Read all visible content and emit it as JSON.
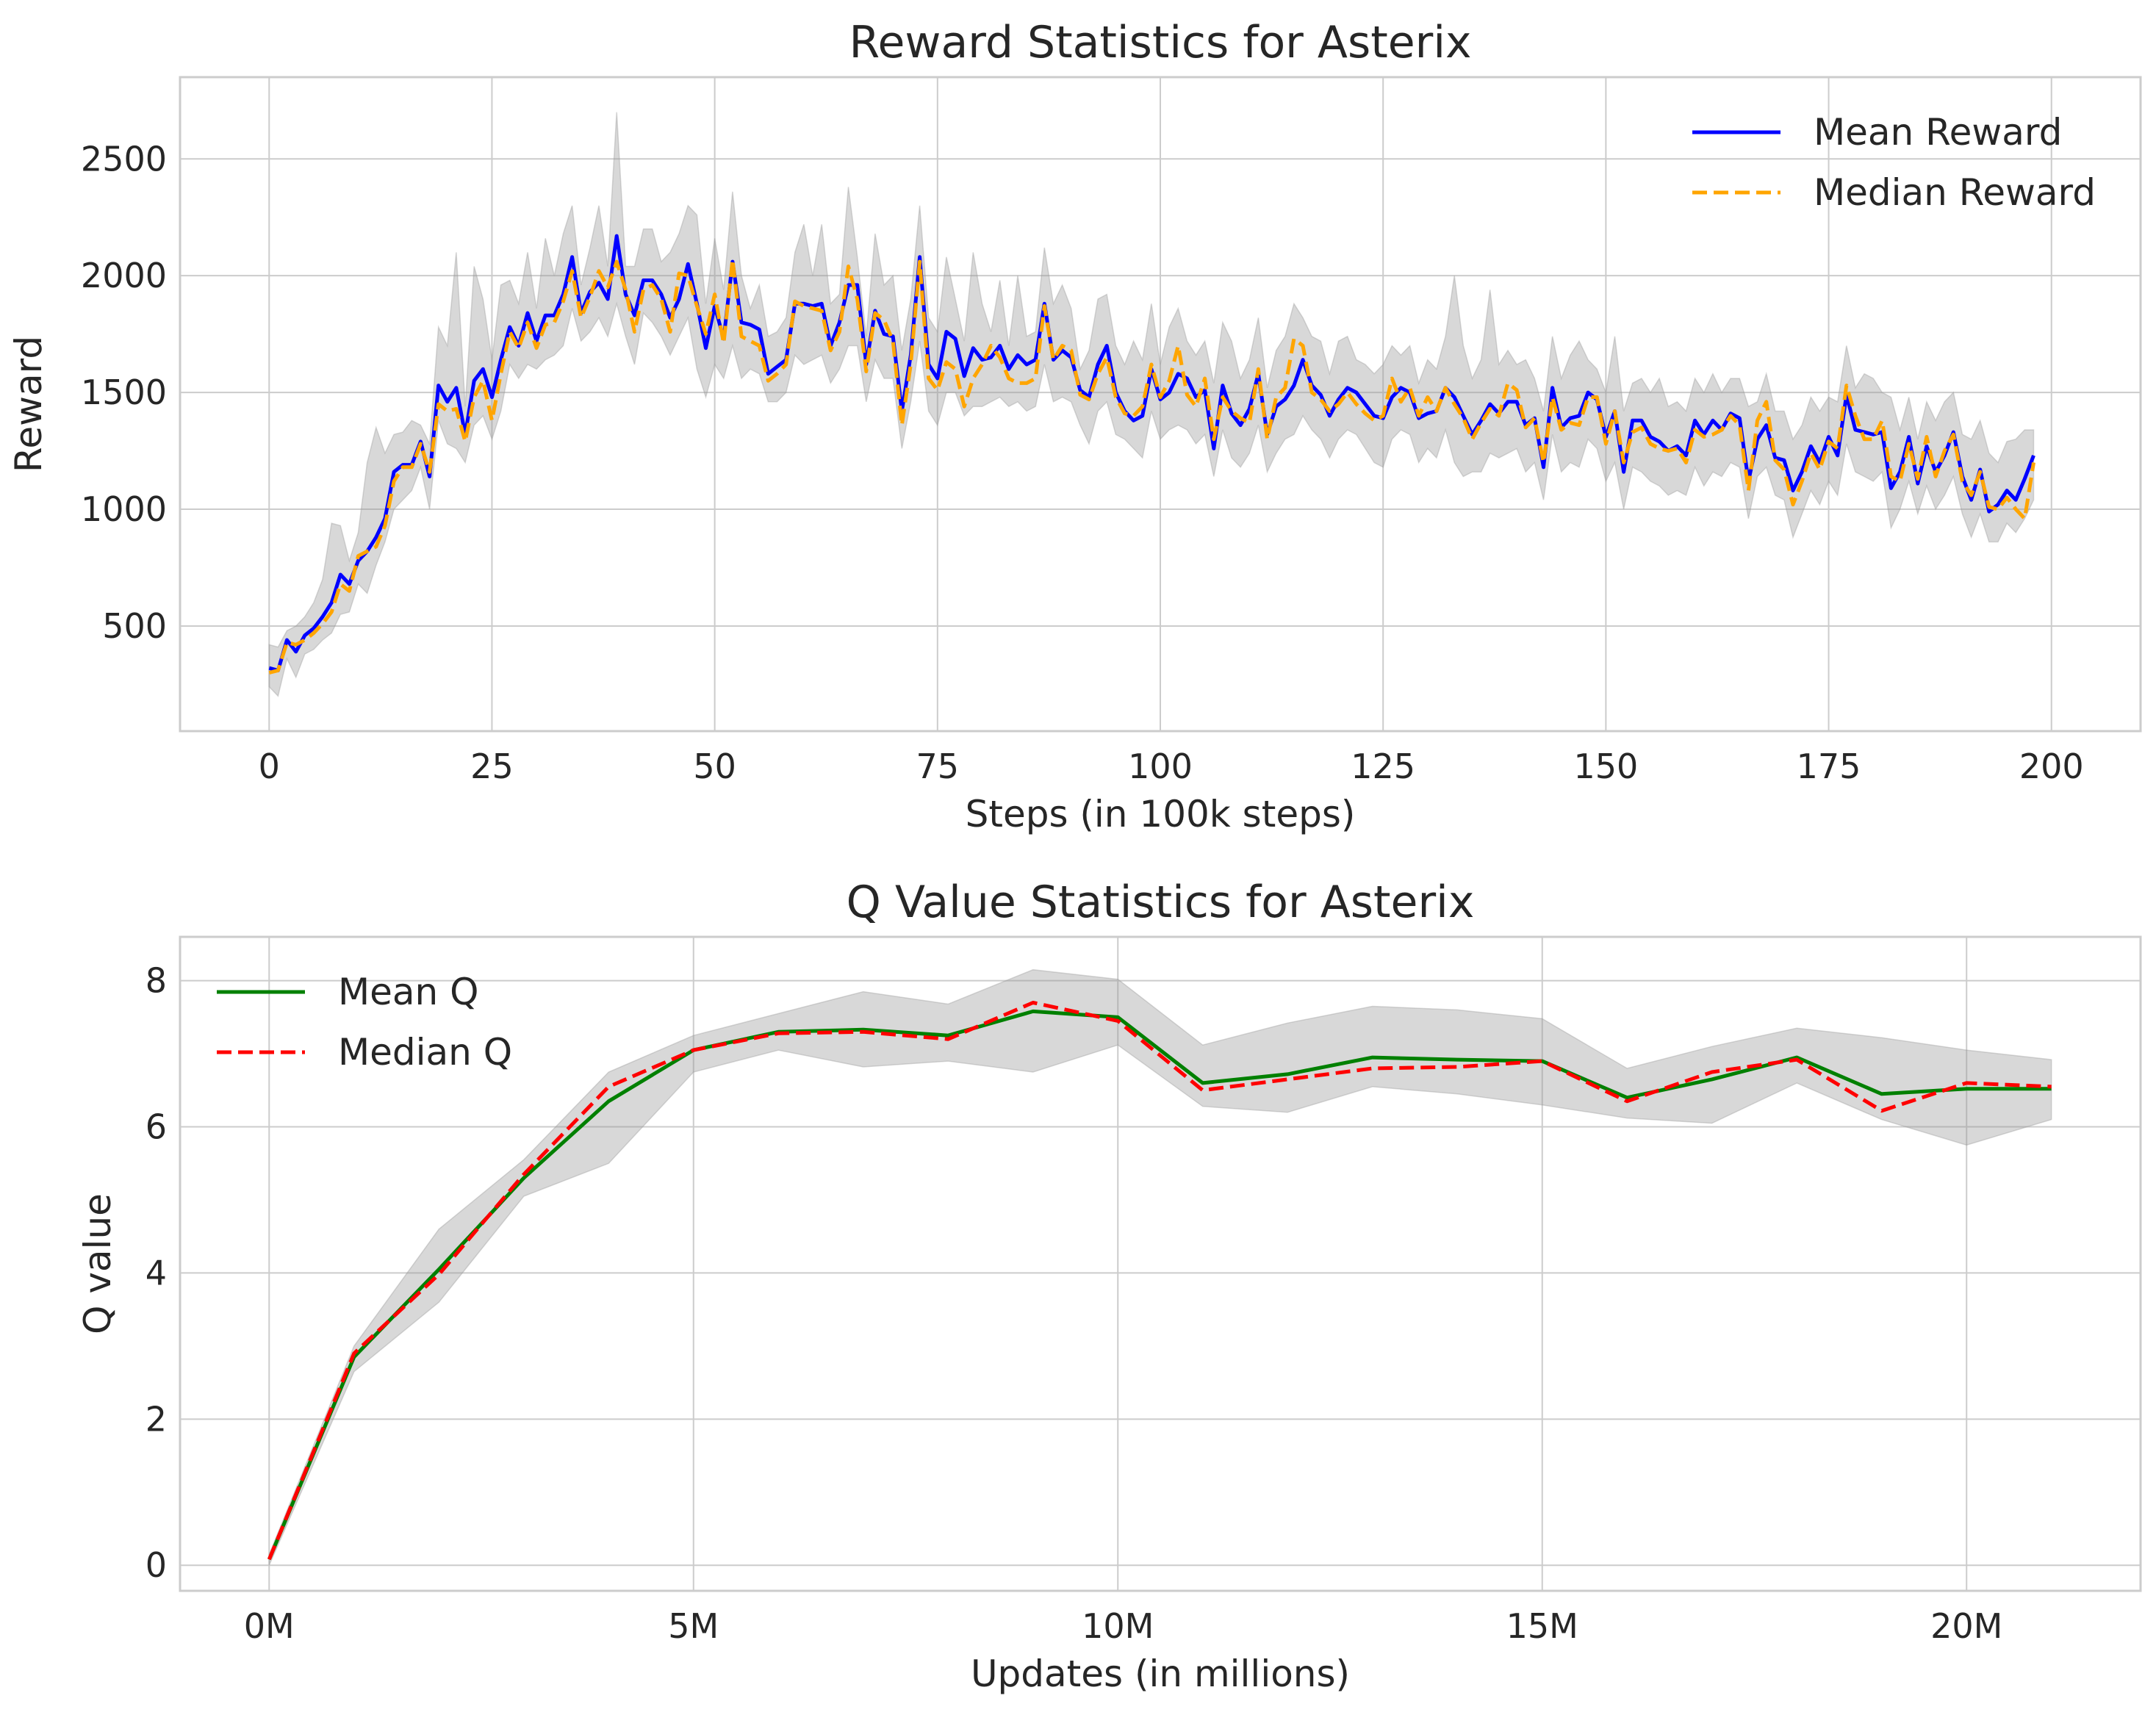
{
  "chart_data": [
    {
      "type": "line",
      "title": "Reward Statistics for Asterix",
      "xlabel": "Steps (in 100k steps)",
      "ylabel": "Reward",
      "xlim": [
        -10,
        210
      ],
      "ylim": [
        50,
        2850
      ],
      "xticks": [
        0,
        25,
        50,
        75,
        100,
        125,
        150,
        175,
        200
      ],
      "xtick_labels": [
        "0",
        "25",
        "50",
        "75",
        "100",
        "125",
        "150",
        "175",
        "200"
      ],
      "yticks": [
        500,
        1000,
        1500,
        2000,
        2500
      ],
      "ytick_labels": [
        "500",
        "1000",
        "1500",
        "2000",
        "2500"
      ],
      "grid": true,
      "legend": "top-right",
      "band": "min-max range (gray)",
      "series": [
        {
          "name": "Mean Reward",
          "color": "#0000ff",
          "dash": "solid",
          "x_start": 0,
          "x_step": 1,
          "values": [
            320,
            310,
            440,
            390,
            460,
            490,
            540,
            600,
            720,
            680,
            780,
            820,
            880,
            960,
            1160,
            1190,
            1190,
            1290,
            1140,
            1530,
            1460,
            1520,
            1320,
            1550,
            1600,
            1480,
            1640,
            1780,
            1700,
            1840,
            1720,
            1830,
            1830,
            1920,
            2080,
            1840,
            1930,
            1970,
            1900,
            2170,
            1920,
            1830,
            1980,
            1980,
            1920,
            1820,
            1900,
            2050,
            1880,
            1690,
            1870,
            1730,
            2060,
            1800,
            1790,
            1770,
            1580,
            1610,
            1640,
            1880,
            1880,
            1870,
            1880,
            1700,
            1800,
            1960,
            1960,
            1620,
            1850,
            1750,
            1740,
            1420,
            1660,
            2080,
            1620,
            1560,
            1760,
            1730,
            1570,
            1690,
            1640,
            1650,
            1700,
            1600,
            1660,
            1620,
            1640,
            1880,
            1640,
            1680,
            1650,
            1510,
            1480,
            1620,
            1700,
            1500,
            1420,
            1380,
            1400,
            1600,
            1470,
            1500,
            1580,
            1560,
            1480,
            1510,
            1260,
            1530,
            1410,
            1360,
            1430,
            1580,
            1320,
            1440,
            1470,
            1530,
            1640,
            1530,
            1490,
            1400,
            1470,
            1520,
            1500,
            1450,
            1400,
            1390,
            1480,
            1520,
            1500,
            1390,
            1410,
            1420,
            1520,
            1480,
            1400,
            1320,
            1380,
            1450,
            1410,
            1460,
            1460,
            1360,
            1390,
            1180,
            1520,
            1350,
            1390,
            1400,
            1500,
            1470,
            1310,
            1420,
            1160,
            1380,
            1380,
            1310,
            1290,
            1250,
            1270,
            1230,
            1380,
            1320,
            1380,
            1340,
            1410,
            1390,
            1120,
            1300,
            1360,
            1220,
            1210,
            1080,
            1160,
            1270,
            1200,
            1310,
            1230,
            1490,
            1340,
            1330,
            1320,
            1330,
            1090,
            1160,
            1310,
            1110,
            1270,
            1160,
            1230,
            1330,
            1140,
            1040,
            1170,
            990,
            1020,
            1080,
            1040,
            1130,
            1230
          ]
        },
        {
          "name": "Median Reward",
          "color": "#ffa500",
          "dash": "dashed",
          "x_start": 0,
          "x_step": 1,
          "values": [
            300,
            310,
            430,
            420,
            440,
            470,
            510,
            560,
            680,
            650,
            800,
            820,
            840,
            930,
            1120,
            1180,
            1180,
            1280,
            1160,
            1450,
            1420,
            1430,
            1290,
            1480,
            1550,
            1380,
            1580,
            1760,
            1690,
            1800,
            1690,
            1790,
            1800,
            1890,
            2020,
            1820,
            1910,
            2020,
            1950,
            2060,
            1940,
            1760,
            1940,
            1960,
            1900,
            1760,
            2010,
            2000,
            1870,
            1750,
            1920,
            1710,
            2070,
            1740,
            1720,
            1700,
            1550,
            1580,
            1620,
            1890,
            1870,
            1860,
            1850,
            1680,
            1760,
            2040,
            1900,
            1590,
            1840,
            1810,
            1720,
            1360,
            1620,
            2060,
            1560,
            1510,
            1630,
            1600,
            1440,
            1560,
            1620,
            1700,
            1650,
            1560,
            1540,
            1540,
            1560,
            1870,
            1640,
            1700,
            1680,
            1490,
            1470,
            1580,
            1650,
            1480,
            1410,
            1400,
            1440,
            1620,
            1480,
            1550,
            1700,
            1490,
            1440,
            1560,
            1300,
            1480,
            1420,
            1390,
            1370,
            1600,
            1300,
            1480,
            1520,
            1730,
            1700,
            1500,
            1470,
            1420,
            1450,
            1500,
            1450,
            1410,
            1380,
            1400,
            1560,
            1460,
            1520,
            1400,
            1480,
            1420,
            1520,
            1450,
            1390,
            1300,
            1370,
            1430,
            1400,
            1540,
            1510,
            1350,
            1390,
            1200,
            1480,
            1340,
            1370,
            1360,
            1480,
            1480,
            1280,
            1420,
            1200,
            1330,
            1350,
            1280,
            1260,
            1250,
            1260,
            1200,
            1340,
            1310,
            1320,
            1340,
            1400,
            1360,
            1080,
            1380,
            1460,
            1210,
            1170,
            1020,
            1120,
            1240,
            1170,
            1290,
            1260,
            1530,
            1400,
            1300,
            1300,
            1380,
            1140,
            1120,
            1280,
            1130,
            1310,
            1140,
            1250,
            1320,
            1120,
            1060,
            1160,
            1010,
            1000,
            1050,
            1000,
            960,
            1200
          ]
        }
      ],
      "band_upper": [
        420,
        410,
        480,
        500,
        540,
        600,
        700,
        940,
        930,
        780,
        900,
        1200,
        1350,
        1240,
        1320,
        1330,
        1380,
        1360,
        1280,
        1780,
        1700,
        2100,
        1440,
        2040,
        1900,
        1640,
        1960,
        1980,
        1880,
        2100,
        1860,
        2160,
        2000,
        2180,
        2300,
        1960,
        2120,
        2300,
        2040,
        2700,
        2040,
        2040,
        2200,
        2200,
        2060,
        2100,
        2180,
        2300,
        2260,
        1880,
        2160,
        1940,
        2360,
        2000,
        1860,
        1960,
        1740,
        1760,
        1820,
        2100,
        2220,
        2000,
        2220,
        1880,
        1920,
        2380,
        2080,
        1740,
        2180,
        1960,
        2000,
        1680,
        1900,
        2300,
        1820,
        1760,
        2080,
        1900,
        1720,
        2100,
        1880,
        1760,
        1980,
        1700,
        2000,
        1740,
        1760,
        2120,
        1880,
        1960,
        1860,
        1600,
        1680,
        1900,
        1920,
        1700,
        1620,
        1720,
        1640,
        1880,
        1620,
        1780,
        1860,
        1720,
        1660,
        1720,
        1540,
        1800,
        1720,
        1560,
        1640,
        1820,
        1520,
        1680,
        1740,
        1880,
        1820,
        1740,
        1720,
        1580,
        1720,
        1740,
        1640,
        1620,
        1580,
        1620,
        1700,
        1660,
        1700,
        1540,
        1640,
        1600,
        1740,
        2000,
        1700,
        1560,
        1640,
        1940,
        1620,
        1680,
        1620,
        1640,
        1560,
        1420,
        1740,
        1560,
        1660,
        1720,
        1640,
        1600,
        1500,
        1740,
        1420,
        1540,
        1560,
        1500,
        1560,
        1440,
        1460,
        1420,
        1560,
        1500,
        1580,
        1500,
        1560,
        1560,
        1440,
        1460,
        1580,
        1420,
        1420,
        1300,
        1360,
        1480,
        1420,
        1480,
        1460,
        1700,
        1520,
        1580,
        1560,
        1500,
        1480,
        1340,
        1480,
        1300,
        1460,
        1380,
        1460,
        1500,
        1320,
        1300,
        1380,
        1240,
        1200,
        1290,
        1300,
        1340,
        1340
      ],
      "band_lower": [
        240,
        200,
        360,
        280,
        380,
        400,
        440,
        470,
        550,
        560,
        680,
        640,
        760,
        860,
        1000,
        1040,
        1080,
        1180,
        1000,
        1380,
        1280,
        1260,
        1200,
        1360,
        1400,
        1300,
        1420,
        1620,
        1560,
        1620,
        1600,
        1640,
        1660,
        1700,
        1860,
        1720,
        1760,
        1820,
        1740,
        1880,
        1740,
        1620,
        1840,
        1800,
        1740,
        1660,
        1740,
        1820,
        1600,
        1480,
        1620,
        1560,
        1700,
        1560,
        1600,
        1580,
        1460,
        1460,
        1500,
        1660,
        1620,
        1640,
        1660,
        1540,
        1600,
        1700,
        1700,
        1460,
        1640,
        1560,
        1560,
        1260,
        1460,
        1720,
        1420,
        1360,
        1500,
        1500,
        1400,
        1440,
        1440,
        1460,
        1480,
        1440,
        1460,
        1420,
        1440,
        1620,
        1460,
        1480,
        1460,
        1360,
        1280,
        1420,
        1460,
        1320,
        1300,
        1260,
        1220,
        1420,
        1300,
        1340,
        1360,
        1340,
        1280,
        1320,
        1140,
        1340,
        1220,
        1180,
        1240,
        1360,
        1160,
        1240,
        1300,
        1320,
        1400,
        1340,
        1300,
        1220,
        1300,
        1340,
        1320,
        1260,
        1200,
        1180,
        1300,
        1340,
        1320,
        1200,
        1260,
        1220,
        1340,
        1200,
        1140,
        1160,
        1160,
        1240,
        1220,
        1240,
        1260,
        1160,
        1200,
        1040,
        1320,
        1160,
        1200,
        1180,
        1300,
        1260,
        1120,
        1200,
        1000,
        1180,
        1160,
        1120,
        1100,
        1060,
        1080,
        1060,
        1180,
        1100,
        1160,
        1140,
        1200,
        1180,
        960,
        1140,
        1180,
        1060,
        1040,
        880,
        980,
        1080,
        1020,
        1120,
        1060,
        1280,
        1160,
        1140,
        1120,
        1160,
        920,
        1000,
        1120,
        980,
        1100,
        1000,
        1060,
        1140,
        980,
        880,
        980,
        860,
        860,
        940,
        900,
        960,
        1040
      ]
    },
    {
      "type": "line",
      "title": "Q Value Statistics for Asterix",
      "xlabel": "Updates (in millions)",
      "ylabel": "Q value",
      "xlim": [
        -1.05,
        22.05
      ],
      "ylim": [
        -0.35,
        8.6
      ],
      "xticks": [
        0,
        5,
        10,
        15,
        20
      ],
      "xtick_labels": [
        "0M",
        "5M",
        "10M",
        "15M",
        "20M"
      ],
      "yticks": [
        0,
        2,
        4,
        6,
        8
      ],
      "ytick_labels": [
        "0",
        "2",
        "4",
        "6",
        "8"
      ],
      "grid": true,
      "legend": "top-left",
      "band": "min-max range (gray)",
      "x": [
        0,
        1,
        2,
        3,
        4,
        5,
        6,
        7,
        8,
        9,
        10,
        11,
        12,
        13,
        14,
        15,
        16,
        17,
        18,
        19,
        20,
        21
      ],
      "series": [
        {
          "name": "Mean Q",
          "color": "#008000",
          "dash": "solid",
          "values": [
            0.08,
            2.85,
            4.05,
            5.3,
            6.35,
            7.05,
            7.3,
            7.33,
            7.25,
            7.58,
            7.5,
            6.6,
            6.72,
            6.95,
            6.92,
            6.9,
            6.4,
            6.65,
            6.95,
            6.45,
            6.52,
            6.52
          ]
        },
        {
          "name": "Median Q",
          "color": "#ff0000",
          "dash": "dashed",
          "values": [
            0.08,
            2.9,
            3.98,
            5.35,
            6.55,
            7.05,
            7.28,
            7.3,
            7.2,
            7.7,
            7.45,
            6.5,
            6.65,
            6.8,
            6.82,
            6.9,
            6.35,
            6.75,
            6.92,
            6.22,
            6.6,
            6.55
          ]
        }
      ],
      "band_upper": [
        0.15,
        3.0,
        4.6,
        5.55,
        6.75,
        7.25,
        7.55,
        7.85,
        7.68,
        8.15,
        8.02,
        7.12,
        7.42,
        7.65,
        7.6,
        7.48,
        6.8,
        7.1,
        7.35,
        7.22,
        7.05,
        6.92
      ],
      "band_lower": [
        0.0,
        2.65,
        3.6,
        5.05,
        5.5,
        6.75,
        7.05,
        6.82,
        6.9,
        6.75,
        7.12,
        6.28,
        6.2,
        6.55,
        6.45,
        6.3,
        6.12,
        6.05,
        6.6,
        6.1,
        5.75,
        6.1
      ]
    }
  ]
}
